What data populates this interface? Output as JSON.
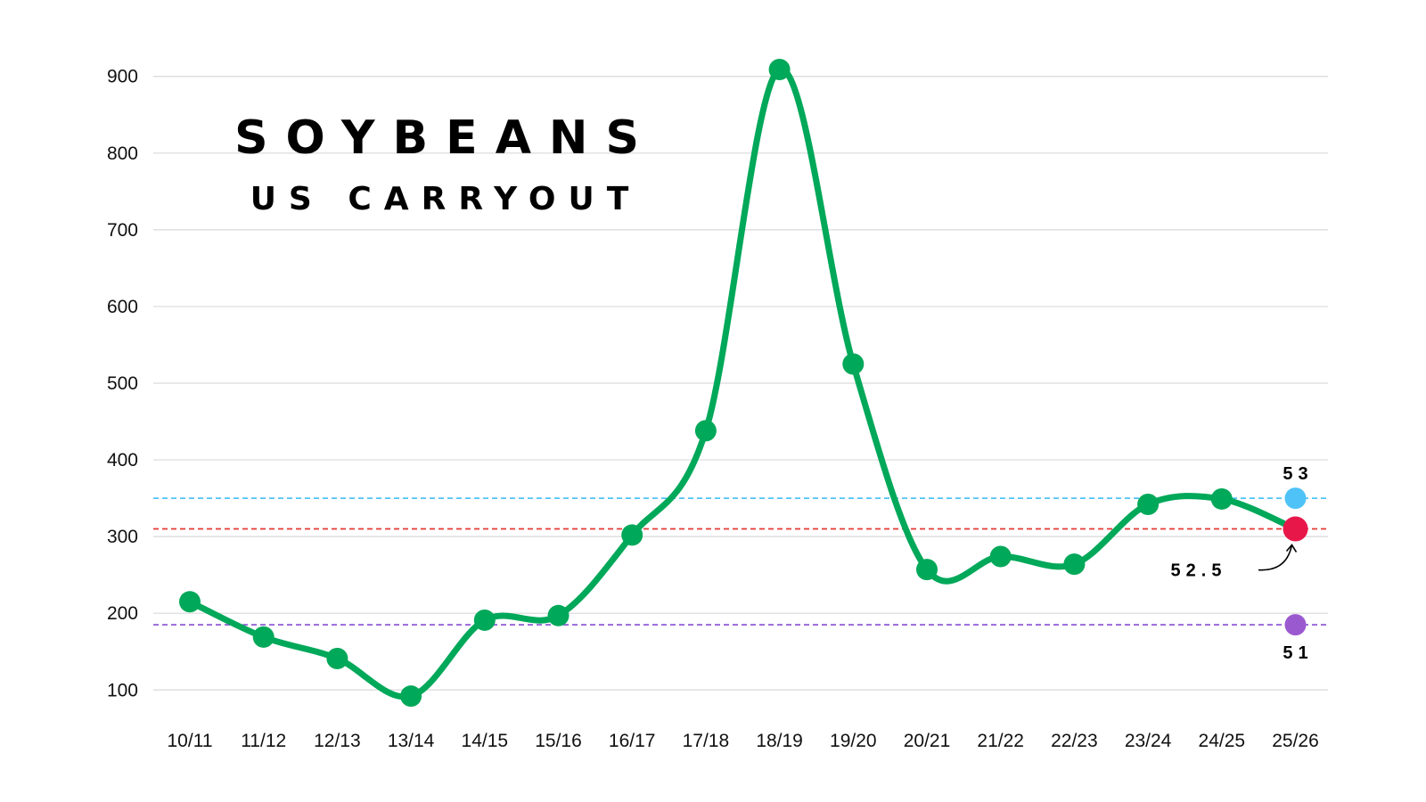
{
  "chart_data": {
    "type": "line",
    "title": "SOYBEANS",
    "subtitle": "US CARRYOUT",
    "xlabel": "",
    "ylabel": "",
    "categories": [
      "10/11",
      "11/12",
      "12/13",
      "13/14",
      "14/15",
      "15/16",
      "16/17",
      "17/18",
      "18/19",
      "19/20",
      "20/21",
      "21/22",
      "22/23",
      "23/24",
      "24/25",
      "25/26"
    ],
    "series": [
      {
        "values": [
          215,
          169,
          141,
          92,
          191,
          197,
          302,
          438,
          909,
          525,
          257,
          274,
          264,
          342,
          349,
          310
        ]
      }
    ],
    "yticks": [
      100,
      200,
      300,
      400,
      500,
      600,
      700,
      800,
      900
    ],
    "ylim": [
      55,
      945
    ],
    "grid": true,
    "reference_lines": [
      {
        "label": "53",
        "value": 350,
        "color": "#4fc3f7",
        "dot_color": "#4fc3f7"
      },
      {
        "label": "52.5",
        "value": 310,
        "color": "#e53935",
        "dot_color": "#e8174a"
      },
      {
        "label": "51",
        "value": 185,
        "color": "#8e5ad6",
        "dot_color": "#9b59d0"
      }
    ],
    "colors": {
      "line": "#00a859",
      "grid": "#d9d9d9"
    }
  }
}
